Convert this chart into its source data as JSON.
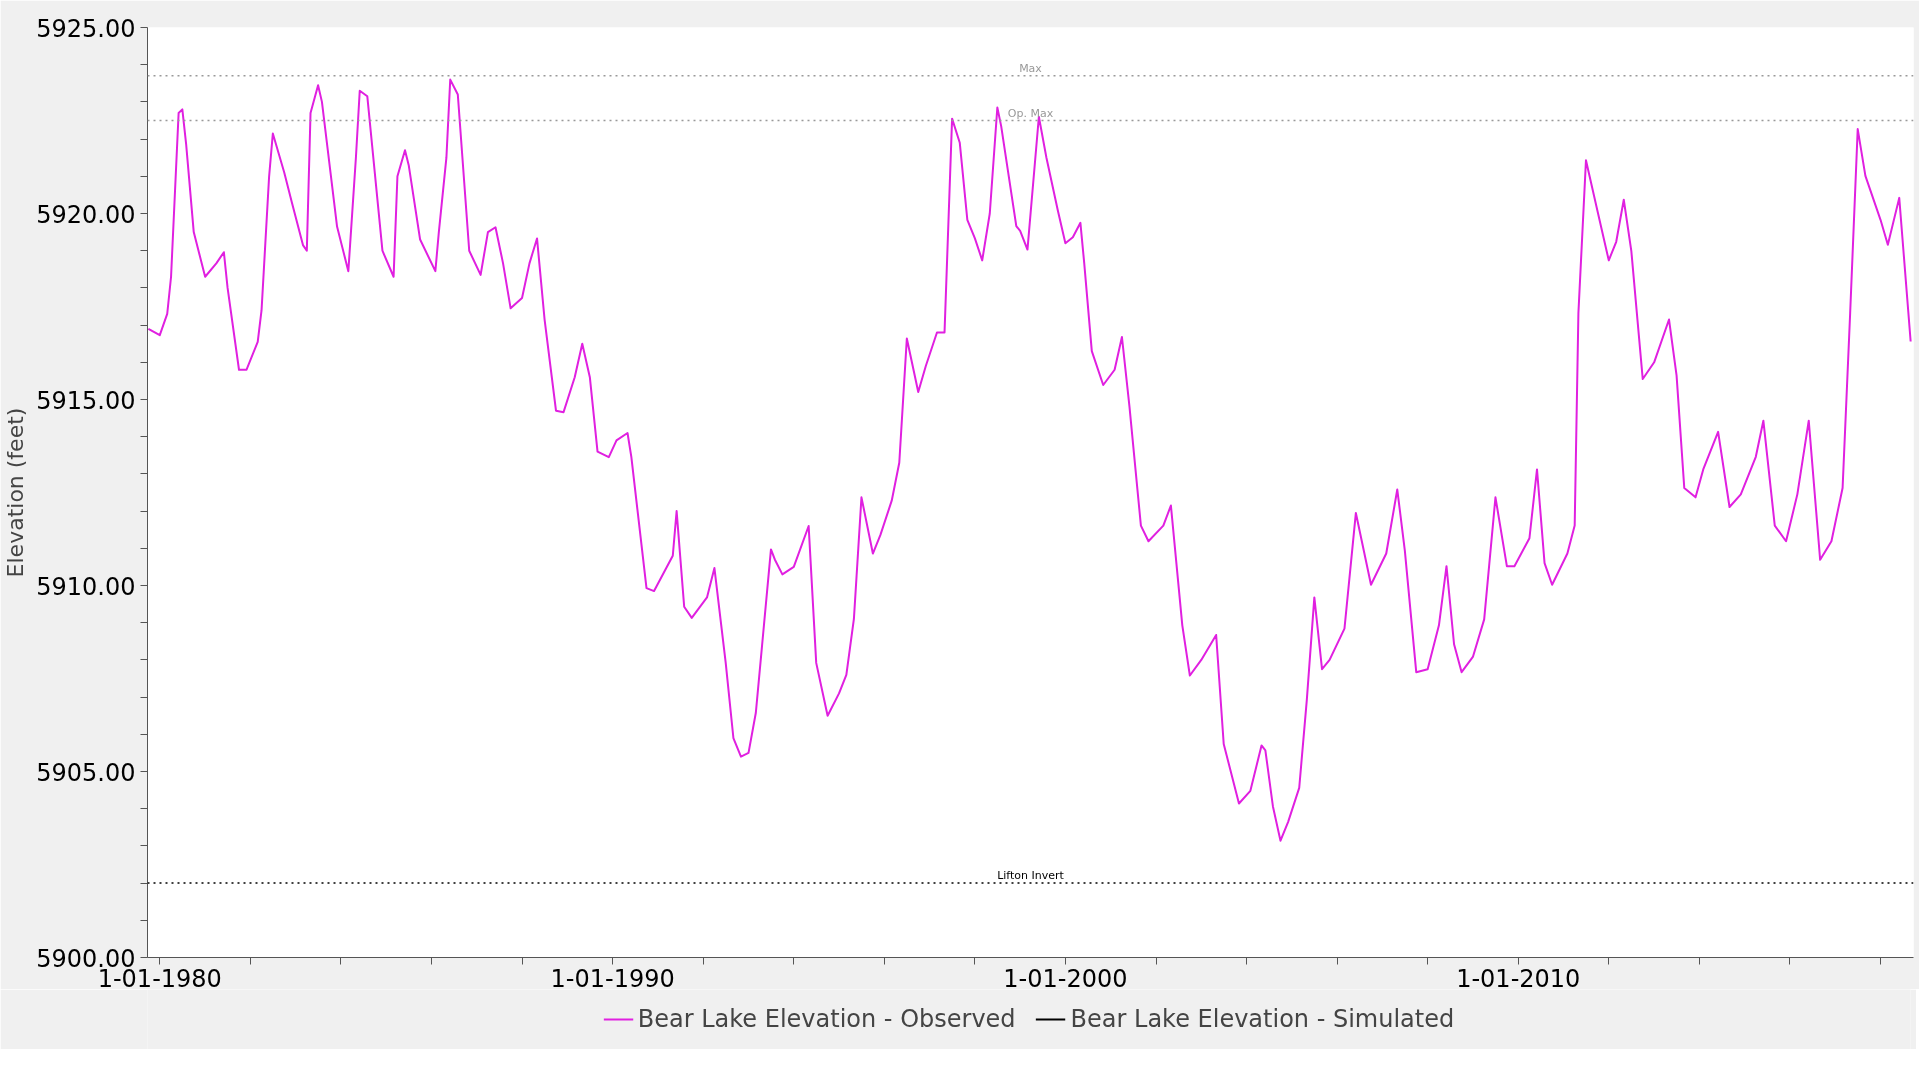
{
  "chart_data": {
    "type": "line",
    "ylabel": "Elevation (feet)",
    "xlim": [
      "1979-09-24",
      "2018-09-24"
    ],
    "ylim": [
      5900,
      5925
    ],
    "xticks": [
      {
        "value": "1980-01-01",
        "label": "1-01-1980"
      },
      {
        "value": "1982-01-01",
        "label": null
      },
      {
        "value": "1984-01-01",
        "label": null
      },
      {
        "value": "1986-01-01",
        "label": null
      },
      {
        "value": "1988-01-01",
        "label": null
      },
      {
        "value": "1990-01-01",
        "label": "1-01-1990"
      },
      {
        "value": "1992-01-01",
        "label": null
      },
      {
        "value": "1994-01-01",
        "label": null
      },
      {
        "value": "1996-01-01",
        "label": null
      },
      {
        "value": "1998-01-01",
        "label": null
      },
      {
        "value": "2000-01-01",
        "label": "1-01-2000"
      },
      {
        "value": "2002-01-01",
        "label": null
      },
      {
        "value": "2004-01-01",
        "label": null
      },
      {
        "value": "2006-01-01",
        "label": null
      },
      {
        "value": "2008-01-01",
        "label": null
      },
      {
        "value": "2010-01-01",
        "label": "1-01-2010"
      },
      {
        "value": "2012-01-01",
        "label": null
      },
      {
        "value": "2014-01-01",
        "label": null
      },
      {
        "value": "2016-01-01",
        "label": null
      },
      {
        "value": "2018-01-01",
        "label": null
      }
    ],
    "yticks": [
      {
        "value": 5900,
        "label": "5900.00"
      },
      {
        "value": 5901,
        "label": null
      },
      {
        "value": 5902,
        "label": null
      },
      {
        "value": 5903,
        "label": null
      },
      {
        "value": 5904,
        "label": null
      },
      {
        "value": 5905,
        "label": "5905.00"
      },
      {
        "value": 5906,
        "label": null
      },
      {
        "value": 5907,
        "label": null
      },
      {
        "value": 5908,
        "label": null
      },
      {
        "value": 5909,
        "label": null
      },
      {
        "value": 5910,
        "label": "5910.00"
      },
      {
        "value": 5911,
        "label": null
      },
      {
        "value": 5912,
        "label": null
      },
      {
        "value": 5913,
        "label": null
      },
      {
        "value": 5914,
        "label": null
      },
      {
        "value": 5915,
        "label": "5915.00"
      },
      {
        "value": 5916,
        "label": null
      },
      {
        "value": 5917,
        "label": null
      },
      {
        "value": 5918,
        "label": null
      },
      {
        "value": 5919,
        "label": null
      },
      {
        "value": 5920,
        "label": "5920.00"
      },
      {
        "value": 5921,
        "label": null
      },
      {
        "value": 5922,
        "label": null
      },
      {
        "value": 5923,
        "label": null
      },
      {
        "value": 5924,
        "label": null
      },
      {
        "value": 5925,
        "label": "5925.00"
      }
    ],
    "grid": false,
    "legend": "bottom",
    "marker": "none",
    "line_style": "solid",
    "ref_lines": [
      {
        "axis": "y",
        "value": 5923.7,
        "label": "Max",
        "color": "#999999",
        "line_style": "dotted"
      },
      {
        "axis": "y",
        "value": 5922.5,
        "label": "Op. Max",
        "color": "#999999",
        "line_style": "dotted"
      },
      {
        "axis": "y",
        "value": 5902.0,
        "label": "Lifton Invert",
        "color": "#000000",
        "line_style": "dotted"
      }
    ],
    "series": [
      {
        "name": "Bear Lake Elevation - Observed",
        "color": "#e020e0",
        "x": [
          "1979-10",
          "1980-01",
          "1980-03",
          "1980-04",
          "1980-06",
          "1980-07",
          "1980-08",
          "1980-10",
          "1981-01",
          "1981-04",
          "1981-06",
          "1981-07",
          "1981-10",
          "1981-12",
          "1982-03",
          "1982-04",
          "1982-06",
          "1982-07",
          "1982-10",
          "1982-12",
          "1983-03",
          "1983-04",
          "1983-05",
          "1983-07",
          "1983-08",
          "1983-12",
          "1984-03",
          "1984-05",
          "1984-06",
          "1984-08",
          "1984-12",
          "1985-03",
          "1985-04",
          "1985-06",
          "1985-07",
          "1985-10",
          "1986-02",
          "1986-03",
          "1986-05",
          "1986-06",
          "1986-08",
          "1986-11",
          "1987-02",
          "1987-04",
          "1987-06",
          "1987-08",
          "1987-10",
          "1988-01",
          "1988-03",
          "1988-05",
          "1988-07",
          "1988-10",
          "1988-12",
          "1989-03",
          "1989-05",
          "1989-07",
          "1989-09",
          "1989-12",
          "1990-02",
          "1990-05",
          "1990-06",
          "1990-10",
          "1990-12",
          "1991-05",
          "1991-06",
          "1991-08",
          "1991-10",
          "1992-02",
          "1992-04",
          "1992-07",
          "1992-09",
          "1992-11",
          "1993-01",
          "1993-03",
          "1993-07",
          "1993-08",
          "1993-10",
          "1994-01",
          "1994-05",
          "1994-07",
          "1994-10",
          "1995-01",
          "1995-03",
          "1995-05",
          "1995-07",
          "1995-10",
          "1995-12",
          "1996-03",
          "1996-05",
          "1996-07",
          "1996-10",
          "1996-12",
          "1997-03",
          "1997-05",
          "1997-07",
          "1997-09",
          "1997-11",
          "1998-01",
          "1998-03",
          "1998-05",
          "1998-07",
          "1998-08",
          "1998-12",
          "1999-01",
          "1999-03",
          "1999-06",
          "1999-08",
          "1999-11",
          "2000-01",
          "2000-03",
          "2000-05",
          "2000-06",
          "2000-08",
          "2000-11",
          "2001-02",
          "2001-04",
          "2001-06",
          "2001-09",
          "2001-11",
          "2002-03",
          "2002-05",
          "2002-08",
          "2002-10",
          "2003-01",
          "2003-05",
          "2003-07",
          "2003-11",
          "2004-02",
          "2004-05",
          "2004-06",
          "2004-08",
          "2004-10",
          "2004-12",
          "2005-03",
          "2005-05",
          "2005-07",
          "2005-09",
          "2005-11",
          "2006-03",
          "2006-06",
          "2006-10",
          "2007-02",
          "2007-05",
          "2007-07",
          "2007-10",
          "2008-01",
          "2008-04",
          "2008-06",
          "2008-08",
          "2008-10",
          "2009-01",
          "2009-04",
          "2009-07",
          "2009-10",
          "2009-12",
          "2010-04",
          "2010-06",
          "2010-08",
          "2010-10",
          "2011-02",
          "2011-04",
          "2011-05",
          "2011-07",
          "2011-10",
          "2012-01",
          "2012-03",
          "2012-05",
          "2012-07",
          "2012-10",
          "2013-01",
          "2013-05",
          "2013-07",
          "2013-09",
          "2013-12",
          "2014-02",
          "2014-06",
          "2014-09",
          "2014-12",
          "2015-04",
          "2015-06",
          "2015-09",
          "2015-12",
          "2016-03",
          "2016-06",
          "2016-09",
          "2016-12",
          "2017-03",
          "2017-05",
          "2017-07",
          "2017-09",
          "2018-01",
          "2018-03",
          "2018-06",
          "2018-09"
        ],
        "values": [
          5916.9,
          5916.73,
          5917.3,
          5918.3,
          5922.7,
          5922.8,
          5921.85,
          5919.5,
          5918.3,
          5918.66,
          5918.96,
          5918.0,
          5915.8,
          5915.8,
          5916.55,
          5917.4,
          5921.0,
          5922.15,
          5921.1,
          5920.3,
          5919.15,
          5919.0,
          5922.7,
          5923.45,
          5923.0,
          5919.65,
          5918.45,
          5921.5,
          5923.3,
          5923.15,
          5919.0,
          5918.3,
          5921.0,
          5921.7,
          5921.3,
          5919.3,
          5918.45,
          5919.5,
          5921.5,
          5923.6,
          5923.2,
          5919.0,
          5918.35,
          5919.5,
          5919.63,
          5918.66,
          5917.45,
          5917.73,
          5918.66,
          5919.33,
          5917.15,
          5914.7,
          5914.66,
          5915.6,
          5916.5,
          5915.6,
          5913.6,
          5913.45,
          5913.9,
          5914.1,
          5913.45,
          5909.93,
          5909.85,
          5910.8,
          5912.0,
          5909.43,
          5909.13,
          5909.68,
          5910.47,
          5907.92,
          5905.9,
          5905.4,
          5905.5,
          5906.58,
          5910.97,
          5910.7,
          5910.3,
          5910.5,
          5911.6,
          5907.92,
          5906.5,
          5907.1,
          5907.6,
          5909.1,
          5912.37,
          5910.86,
          5911.36,
          5912.28,
          5913.3,
          5916.64,
          5915.2,
          5915.9,
          5916.8,
          5916.8,
          5922.55,
          5921.9,
          5919.83,
          5919.33,
          5918.74,
          5920.0,
          5922.85,
          5922.35,
          5919.66,
          5919.53,
          5919.03,
          5922.6,
          5921.5,
          5920.08,
          5919.2,
          5919.36,
          5919.75,
          5918.66,
          5916.3,
          5915.39,
          5915.8,
          5916.68,
          5914.8,
          5911.61,
          5911.19,
          5911.61,
          5912.15,
          5908.93,
          5907.58,
          5908.0,
          5908.67,
          5905.74,
          5904.14,
          5904.48,
          5905.7,
          5905.57,
          5904.06,
          5903.14,
          5903.64,
          5904.56,
          5906.91,
          5909.68,
          5907.75,
          5908.0,
          5908.84,
          5911.95,
          5910.02,
          5910.86,
          5912.58,
          5910.94,
          5907.67,
          5907.75,
          5908.93,
          5910.52,
          5908.42,
          5907.67,
          5908.09,
          5909.09,
          5912.37,
          5910.52,
          5910.52,
          5911.27,
          5913.12,
          5910.6,
          5910.02,
          5910.86,
          5911.61,
          5917.32,
          5921.43,
          5920.08,
          5918.74,
          5919.24,
          5920.37,
          5918.99,
          5915.55,
          5916.0,
          5917.15,
          5915.64,
          5912.62,
          5912.37,
          5913.12,
          5914.13,
          5912.11,
          5912.45,
          5913.46,
          5914.43,
          5911.61,
          5911.19,
          5912.45,
          5914.43,
          5910.69,
          5911.19,
          5912.62,
          5917.32,
          5922.27,
          5921.01,
          5919.83,
          5919.16,
          5920.42,
          5916.56
        ]
      },
      {
        "name": "Bear Lake Elevation - Simulated",
        "color": "#000000"
      }
    ]
  }
}
